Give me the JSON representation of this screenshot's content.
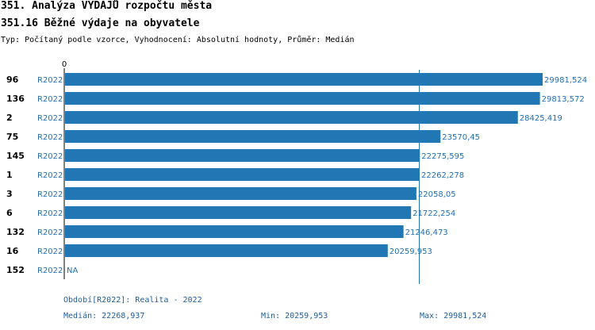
{
  "header": {
    "title": "351. Analýza VÝDAJŮ rozpočtu města",
    "subtitle": "351.16 Běžné výdaje na obyvatele",
    "meta": "Typ: Počítaný podle vzorce, Vyhodnocení: Absolutní hodnoty, Průměr: Medián"
  },
  "chart_data": {
    "type": "bar",
    "orientation": "horizontal",
    "title": "351.16 Běžné výdaje na obyvatele",
    "x_tick_labels": [
      "0"
    ],
    "xlim": [
      0,
      29981.524
    ],
    "median": 22268.937,
    "categories": [
      "96",
      "136",
      "2",
      "75",
      "145",
      "1",
      "3",
      "6",
      "132",
      "16",
      "152"
    ],
    "series_labels": [
      "R2022",
      "R2022",
      "R2022",
      "R2022",
      "R2022",
      "R2022",
      "R2022",
      "R2022",
      "R2022",
      "R2022",
      "R2022"
    ],
    "values": [
      29981.524,
      29813.572,
      28425.419,
      23570.45,
      22275.595,
      22262.278,
      22058.05,
      21722.254,
      21246.473,
      20259.953,
      null
    ],
    "value_labels": [
      "29981,524",
      "29813,572",
      "28425,419",
      "23570,45",
      "22275,595",
      "22262,278",
      "22058,05",
      "21722,254",
      "21246,473",
      "20259,953",
      "NA"
    ],
    "colors": {
      "bar": "#2077b4",
      "text": "#1f6fb5",
      "median_line": "#2077b4"
    }
  },
  "footer": {
    "period": "Období[R2022]: Realita - 2022",
    "median": "Medián: 22268,937",
    "min": "Min: 20259,953",
    "max": "Max: 29981,524"
  }
}
